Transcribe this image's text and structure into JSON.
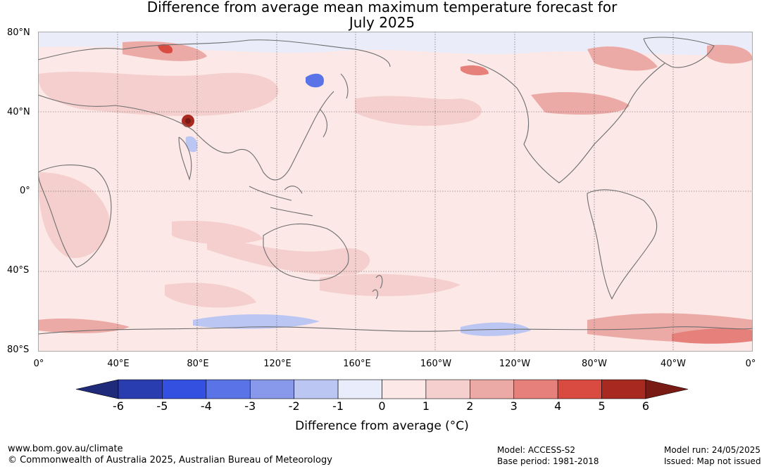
{
  "title_line1": "Difference from average mean maximum temperature forecast for",
  "title_line2": "July 2025",
  "lat_labels": [
    "80°N",
    "40°N",
    "0°",
    "40°S",
    "80°S"
  ],
  "lon_labels": [
    "0°",
    "40°E",
    "80°E",
    "120°E",
    "160°E",
    "160°W",
    "120°W",
    "80°W",
    "40°W",
    "0°"
  ],
  "colorbar": {
    "label": "Difference from average (°C)",
    "ticks": [
      "-6",
      "-5",
      "-4",
      "-3",
      "-2",
      "-1",
      "0",
      "1",
      "2",
      "3",
      "4",
      "5",
      "6"
    ],
    "colors": [
      "#1f2a7a",
      "#2a3db0",
      "#3350e0",
      "#5a74e8",
      "#8898ea",
      "#bcc6f2",
      "#e8ecfb",
      "#fce8e6",
      "#f4cfcd",
      "#ecaaa7",
      "#e5807a",
      "#d94b40",
      "#a8291f",
      "#7a1a14"
    ]
  },
  "footer": {
    "website": "www.bom.gov.au/climate",
    "copyright": "© Commonwealth of Australia 2025, Australian Bureau of Meteorology",
    "model": "Model: ACCESS-S2",
    "base_period": "Base period: 1981-2018",
    "model_run": "Model run: 24/05/2025",
    "issued": "Issued: Map not issued"
  }
}
